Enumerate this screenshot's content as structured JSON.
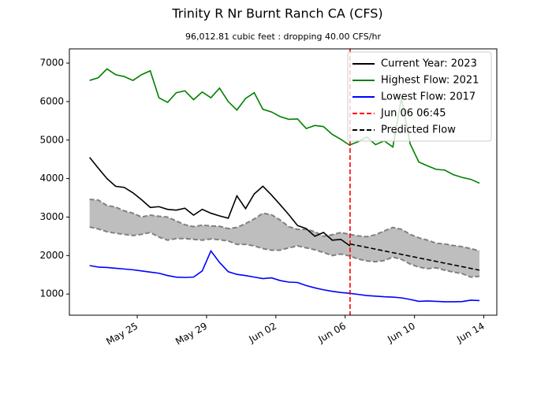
{
  "chart_data": {
    "type": "line",
    "title": "Trinity R Nr Burnt Ranch CA (CFS)",
    "subtitle": "96,012.81 cubic feet : dropping 40.00 CFS/hr",
    "x": [
      "May 22 06:00",
      "May 22 18:00",
      "May 23 06:00",
      "May 23 18:00",
      "May 24 06:00",
      "May 24 18:00",
      "May 25 06:00",
      "May 25 18:00",
      "May 26 06:00",
      "May 26 18:00",
      "May 27 06:00",
      "May 27 18:00",
      "May 28 06:00",
      "May 28 18:00",
      "May 29 06:00",
      "May 29 18:00",
      "May 30 06:00",
      "May 30 18:00",
      "May 31 06:00",
      "May 31 18:00",
      "Jun 01 06:00",
      "Jun 01 18:00",
      "Jun 02 06:00",
      "Jun 02 18:00",
      "Jun 03 06:00",
      "Jun 03 18:00",
      "Jun 04 06:00",
      "Jun 04 18:00",
      "Jun 05 06:00",
      "Jun 05 18:00",
      "Jun 06 06:00",
      "Jun 06 18:00",
      "Jun 07 06:00",
      "Jun 07 18:00",
      "Jun 08 06:00",
      "Jun 08 18:00",
      "Jun 09 06:00",
      "Jun 09 18:00",
      "Jun 10 06:00",
      "Jun 10 18:00",
      "Jun 11 06:00",
      "Jun 11 18:00",
      "Jun 12 06:00",
      "Jun 12 18:00",
      "Jun 13 06:00",
      "Jun 13 18:00"
    ],
    "band": {
      "color": "#bebebe",
      "edge_color": "#808080",
      "upper": [
        3460,
        3440,
        3300,
        3260,
        3160,
        3100,
        3000,
        3050,
        3020,
        3000,
        2900,
        2800,
        2750,
        2790,
        2770,
        2760,
        2700,
        2730,
        2830,
        2950,
        3100,
        3060,
        2920,
        2750,
        2680,
        2680,
        2620,
        2500,
        2540,
        2600,
        2550,
        2510,
        2490,
        2540,
        2640,
        2730,
        2680,
        2550,
        2460,
        2400,
        2320,
        2300,
        2260,
        2230,
        2180,
        2120
      ],
      "lower": [
        2740,
        2690,
        2620,
        2580,
        2550,
        2520,
        2550,
        2600,
        2480,
        2400,
        2440,
        2440,
        2420,
        2400,
        2430,
        2410,
        2380,
        2290,
        2290,
        2250,
        2180,
        2140,
        2140,
        2200,
        2250,
        2200,
        2150,
        2080,
        2000,
        2040,
        1990,
        1910,
        1860,
        1840,
        1870,
        1960,
        1900,
        1780,
        1700,
        1660,
        1680,
        1620,
        1570,
        1530,
        1440,
        1460
      ]
    },
    "series": [
      {
        "name": "Current Year: 2023",
        "color": "#000000",
        "dashed": false,
        "x": [
          "May 22 06:00",
          "May 22 18:00",
          "May 23 06:00",
          "May 23 18:00",
          "May 24 06:00",
          "May 24 18:00",
          "May 25 06:00",
          "May 25 18:00",
          "May 26 06:00",
          "May 26 18:00",
          "May 27 06:00",
          "May 27 18:00",
          "May 28 06:00",
          "May 28 18:00",
          "May 29 06:00",
          "May 29 18:00",
          "May 30 06:00",
          "May 30 18:00",
          "May 31 06:00",
          "May 31 18:00",
          "Jun 01 06:00",
          "Jun 01 18:00",
          "Jun 02 06:00",
          "Jun 02 18:00",
          "Jun 03 06:00",
          "Jun 03 18:00",
          "Jun 04 06:00",
          "Jun 04 18:00",
          "Jun 05 06:00",
          "Jun 05 18:00",
          "Jun 06 06:00",
          "Jun 06 06:45"
        ],
        "values": [
          4550,
          4270,
          4000,
          3800,
          3770,
          3630,
          3450,
          3250,
          3270,
          3200,
          3180,
          3230,
          3050,
          3200,
          3100,
          3030,
          2970,
          3550,
          3220,
          3600,
          3800,
          3570,
          3320,
          3060,
          2780,
          2700,
          2500,
          2600,
          2400,
          2420,
          2260,
          2250
        ]
      },
      {
        "name": "Highest Flow: 2021",
        "color": "#008000",
        "dashed": false,
        "values": [
          6550,
          6620,
          6850,
          6700,
          6650,
          6550,
          6700,
          6800,
          6100,
          5980,
          6230,
          6280,
          6050,
          6250,
          6100,
          6350,
          6000,
          5780,
          6080,
          6230,
          5800,
          5730,
          5610,
          5540,
          5550,
          5300,
          5380,
          5350,
          5150,
          5020,
          4870,
          4960,
          5080,
          4880,
          4980,
          4820,
          6100,
          4900,
          4430,
          4330,
          4240,
          4220,
          4100,
          4030,
          3980,
          3880
        ]
      },
      {
        "name": "Lowest Flow: 2017",
        "color": "#0000ff",
        "dashed": false,
        "values": [
          1740,
          1700,
          1690,
          1670,
          1650,
          1630,
          1600,
          1570,
          1540,
          1480,
          1440,
          1430,
          1440,
          1600,
          2120,
          1820,
          1580,
          1510,
          1480,
          1440,
          1400,
          1420,
          1350,
          1310,
          1300,
          1220,
          1160,
          1110,
          1070,
          1040,
          1020,
          990,
          960,
          945,
          930,
          920,
          900,
          860,
          810,
          820,
          810,
          800,
          800,
          805,
          840,
          830
        ]
      },
      {
        "name": "Jun 06 06:45",
        "type": "vline",
        "color": "#ff0000",
        "dashed": true,
        "x": "Jun 06 06:45"
      },
      {
        "name": "Predicted Flow",
        "color": "#000000",
        "dashed": true,
        "x": [
          "Jun 06 06:45",
          "Jun 13 18:00"
        ],
        "values": [
          2300,
          1620
        ]
      }
    ],
    "xlim": [
      "May 21 02:00",
      "Jun 14 18:00"
    ],
    "xticks": [
      "May 25",
      "May 29",
      "Jun 02",
      "Jun 06",
      "Jun 10",
      "Jun 14"
    ],
    "ylim": [
      450,
      7370
    ],
    "yticks": [
      1000,
      2000,
      3000,
      4000,
      5000,
      6000,
      7000
    ],
    "legend": "upper right"
  }
}
